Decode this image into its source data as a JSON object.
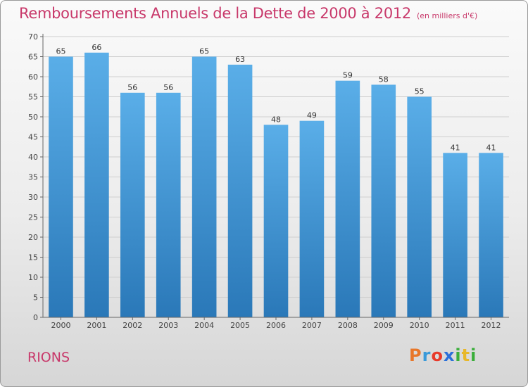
{
  "header": {
    "title": "Remboursements Annuels de la Dette de 2000 à 2012",
    "unit": "(en milliers d'€)"
  },
  "footer": {
    "commune": "RIONS",
    "logo": "Proxiti"
  },
  "colors": {
    "accent": "#c8386a",
    "bar_top": "#5aaee8",
    "bar_bottom": "#2a78b8"
  },
  "chart_data": {
    "type": "bar",
    "categories": [
      "2000",
      "2001",
      "2002",
      "2003",
      "2004",
      "2005",
      "2006",
      "2007",
      "2008",
      "2009",
      "2010",
      "2011",
      "2012"
    ],
    "values": [
      65,
      66,
      56,
      56,
      65,
      63,
      48,
      49,
      59,
      58,
      55,
      41,
      41
    ],
    "title": "Remboursements Annuels de la Dette de 2000 à 2012",
    "ylim": [
      0,
      70
    ],
    "yticks": [
      0,
      5,
      10,
      15,
      20,
      25,
      30,
      35,
      40,
      45,
      50,
      55,
      60,
      65,
      70
    ],
    "grid": true,
    "data_labels": true
  }
}
